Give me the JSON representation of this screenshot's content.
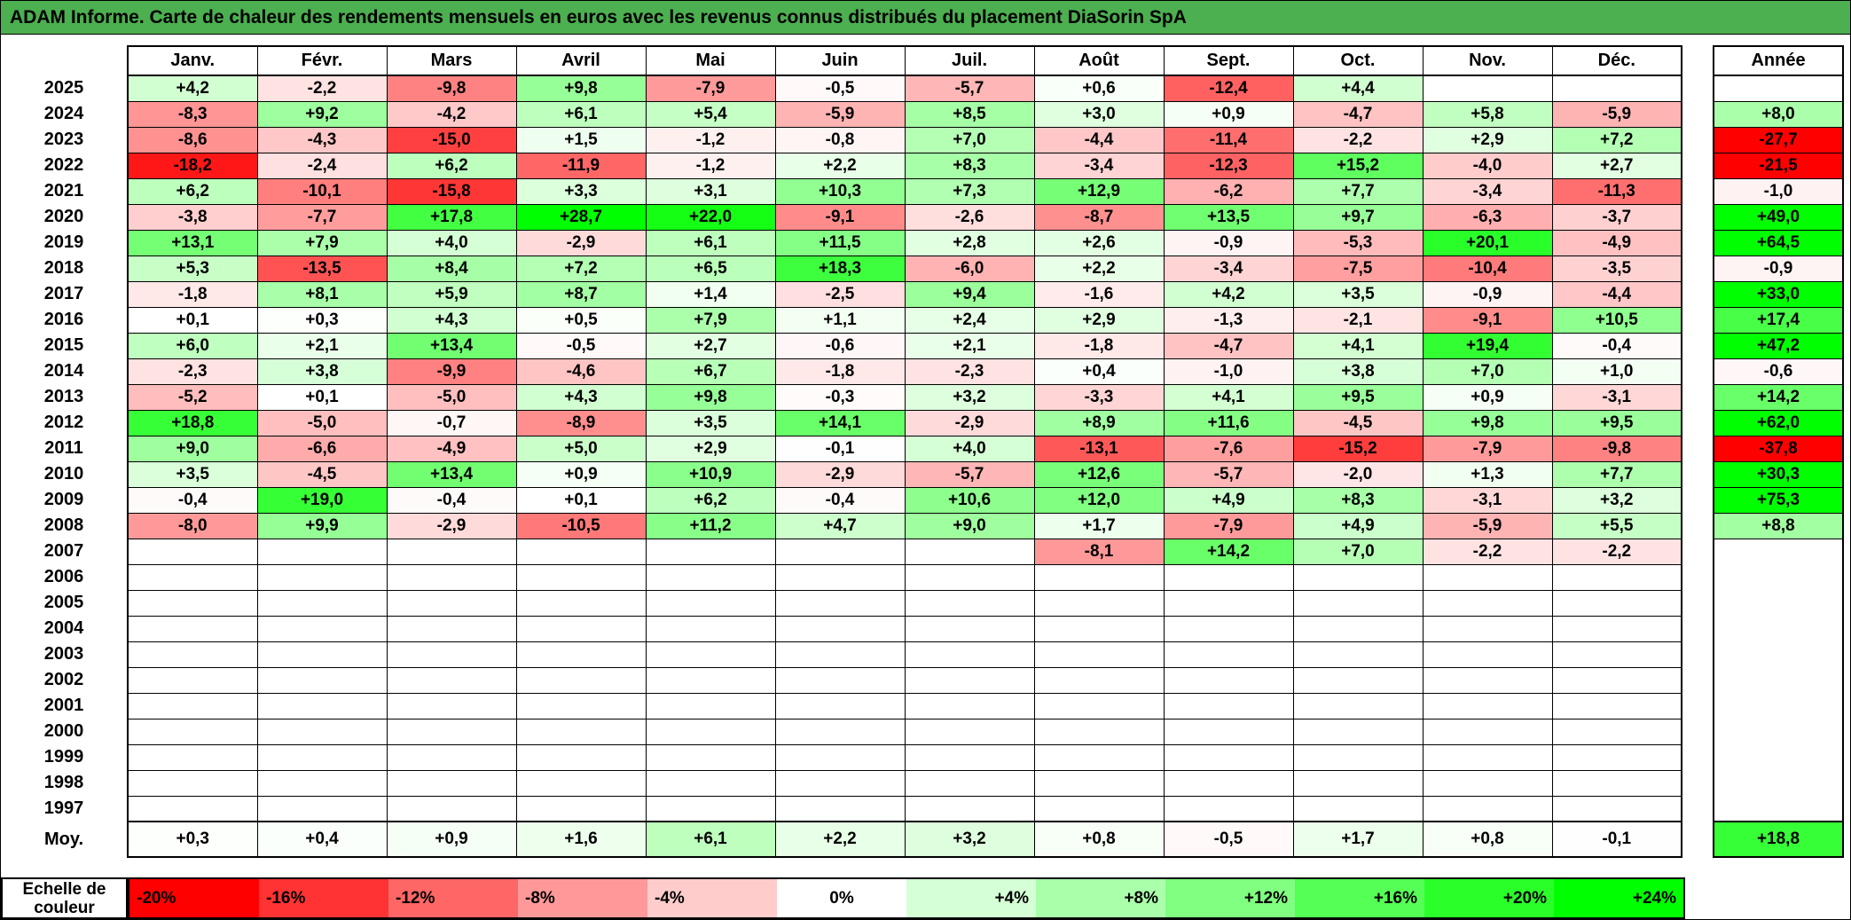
{
  "title": "ADAM Informe. Carte de chaleur des rendements mensuels en euros avec les revenus connus distribués du placement DiaSorin SpA",
  "colors": {
    "title_bg": "#4CAF50",
    "negative_extreme": "#FF0000",
    "zero": "#FFFFFF",
    "positive_extreme": "#00FF00"
  },
  "chart_data": {
    "type": "heatmap",
    "columns": [
      "Janv.",
      "Févr.",
      "Mars",
      "Avril",
      "Mai",
      "Juin",
      "Juil.",
      "Août",
      "Sept.",
      "Oct.",
      "Nov.",
      "Déc."
    ],
    "year_column_header": "Année",
    "rows": [
      {
        "year": "2025",
        "months": [
          4.2,
          -2.2,
          -9.8,
          9.8,
          -7.9,
          -0.5,
          -5.7,
          0.6,
          -12.4,
          4.4,
          null,
          null
        ],
        "annee": null
      },
      {
        "year": "2024",
        "months": [
          -8.3,
          9.2,
          -4.2,
          6.1,
          5.4,
          -5.9,
          8.5,
          3.0,
          0.9,
          -4.7,
          5.8,
          -5.9
        ],
        "annee": 8.0
      },
      {
        "year": "2023",
        "months": [
          -8.6,
          -4.3,
          -15.0,
          1.5,
          -1.2,
          -0.8,
          7.0,
          -4.4,
          -11.4,
          -2.2,
          2.9,
          7.2
        ],
        "annee": -27.7
      },
      {
        "year": "2022",
        "months": [
          -18.2,
          -2.4,
          6.2,
          -11.9,
          -1.2,
          2.2,
          8.3,
          -3.4,
          -12.3,
          15.2,
          -4.0,
          2.7
        ],
        "annee": -21.5
      },
      {
        "year": "2021",
        "months": [
          6.2,
          -10.1,
          -15.8,
          3.3,
          3.1,
          10.3,
          7.3,
          12.9,
          -6.2,
          7.7,
          -3.4,
          -11.3
        ],
        "annee": -1.0
      },
      {
        "year": "2020",
        "months": [
          -3.8,
          -7.7,
          17.8,
          28.7,
          22.0,
          -9.1,
          -2.6,
          -8.7,
          13.5,
          9.7,
          -6.3,
          -3.7
        ],
        "annee": 49.0
      },
      {
        "year": "2019",
        "months": [
          13.1,
          7.9,
          4.0,
          -2.9,
          6.1,
          11.5,
          2.8,
          2.6,
          -0.9,
          -5.3,
          20.1,
          -4.9
        ],
        "annee": 64.5
      },
      {
        "year": "2018",
        "months": [
          5.3,
          -13.5,
          8.4,
          7.2,
          6.5,
          18.3,
          -6.0,
          2.2,
          -3.4,
          -7.5,
          -10.4,
          -3.5
        ],
        "annee": -0.9
      },
      {
        "year": "2017",
        "months": [
          -1.8,
          8.1,
          5.9,
          8.7,
          1.4,
          -2.5,
          9.4,
          -1.6,
          4.2,
          3.5,
          -0.9,
          -4.4
        ],
        "annee": 33.0
      },
      {
        "year": "2016",
        "months": [
          0.1,
          0.3,
          4.3,
          0.5,
          7.9,
          1.1,
          2.4,
          2.9,
          -1.3,
          -2.1,
          -9.1,
          10.5
        ],
        "annee": 17.4
      },
      {
        "year": "2015",
        "months": [
          6.0,
          2.1,
          13.4,
          -0.5,
          2.7,
          -0.6,
          2.1,
          -1.8,
          -4.7,
          4.1,
          19.4,
          -0.4
        ],
        "annee": 47.2
      },
      {
        "year": "2014",
        "months": [
          -2.3,
          3.8,
          -9.9,
          -4.6,
          6.7,
          -1.8,
          -2.3,
          0.4,
          -1.0,
          3.8,
          7.0,
          1.0
        ],
        "annee": -0.6
      },
      {
        "year": "2013",
        "months": [
          -5.2,
          0.1,
          -5.0,
          4.3,
          9.8,
          -0.3,
          3.2,
          -3.3,
          4.1,
          9.5,
          0.9,
          -3.1
        ],
        "annee": 14.2
      },
      {
        "year": "2012",
        "months": [
          18.8,
          -5.0,
          -0.7,
          -8.9,
          3.5,
          14.1,
          -2.9,
          8.9,
          11.6,
          -4.5,
          9.8,
          9.5
        ],
        "annee": 62.0
      },
      {
        "year": "2011",
        "months": [
          9.0,
          -6.6,
          -4.9,
          5.0,
          2.9,
          -0.1,
          4.0,
          -13.1,
          -7.6,
          -15.2,
          -7.9,
          -9.8
        ],
        "annee": -37.8
      },
      {
        "year": "2010",
        "months": [
          3.5,
          -4.5,
          13.4,
          0.9,
          10.9,
          -2.9,
          -5.7,
          12.6,
          -5.7,
          -2.0,
          1.3,
          7.7
        ],
        "annee": 30.3
      },
      {
        "year": "2009",
        "months": [
          -0.4,
          19.0,
          -0.4,
          0.1,
          6.2,
          -0.4,
          10.6,
          12.0,
          4.9,
          8.3,
          -3.1,
          3.2
        ],
        "annee": 75.3
      },
      {
        "year": "2008",
        "months": [
          -8.0,
          9.9,
          -2.9,
          -10.5,
          11.2,
          4.7,
          9.0,
          1.7,
          -7.9,
          4.9,
          -5.9,
          5.5
        ],
        "annee": 8.8
      },
      {
        "year": "2007",
        "months": [
          null,
          null,
          null,
          null,
          null,
          null,
          null,
          -8.1,
          14.2,
          7.0,
          -2.2,
          -2.2
        ],
        "annee": null
      },
      {
        "year": "2006",
        "months": [],
        "annee": null
      },
      {
        "year": "2005",
        "months": [],
        "annee": null
      },
      {
        "year": "2004",
        "months": [],
        "annee": null
      },
      {
        "year": "2003",
        "months": [],
        "annee": null
      },
      {
        "year": "2002",
        "months": [],
        "annee": null
      },
      {
        "year": "2001",
        "months": [],
        "annee": null
      },
      {
        "year": "2000",
        "months": [],
        "annee": null
      },
      {
        "year": "1999",
        "months": [],
        "annee": null
      },
      {
        "year": "1998",
        "months": [],
        "annee": null
      },
      {
        "year": "1997",
        "months": [],
        "annee": null
      }
    ],
    "avg_row": {
      "label": "Moy.",
      "months": [
        0.3,
        0.4,
        0.9,
        1.6,
        6.1,
        2.2,
        3.2,
        0.8,
        -0.5,
        1.7,
        0.8,
        -0.1
      ],
      "annee": 18.8
    },
    "color_scale": {
      "min": -20,
      "max": 24
    },
    "legend": {
      "label_line1": "Echelle de",
      "label_line2": "couleur",
      "stops": [
        -20,
        -16,
        -12,
        -8,
        -4,
        0,
        4,
        8,
        12,
        16,
        20,
        24
      ]
    }
  }
}
